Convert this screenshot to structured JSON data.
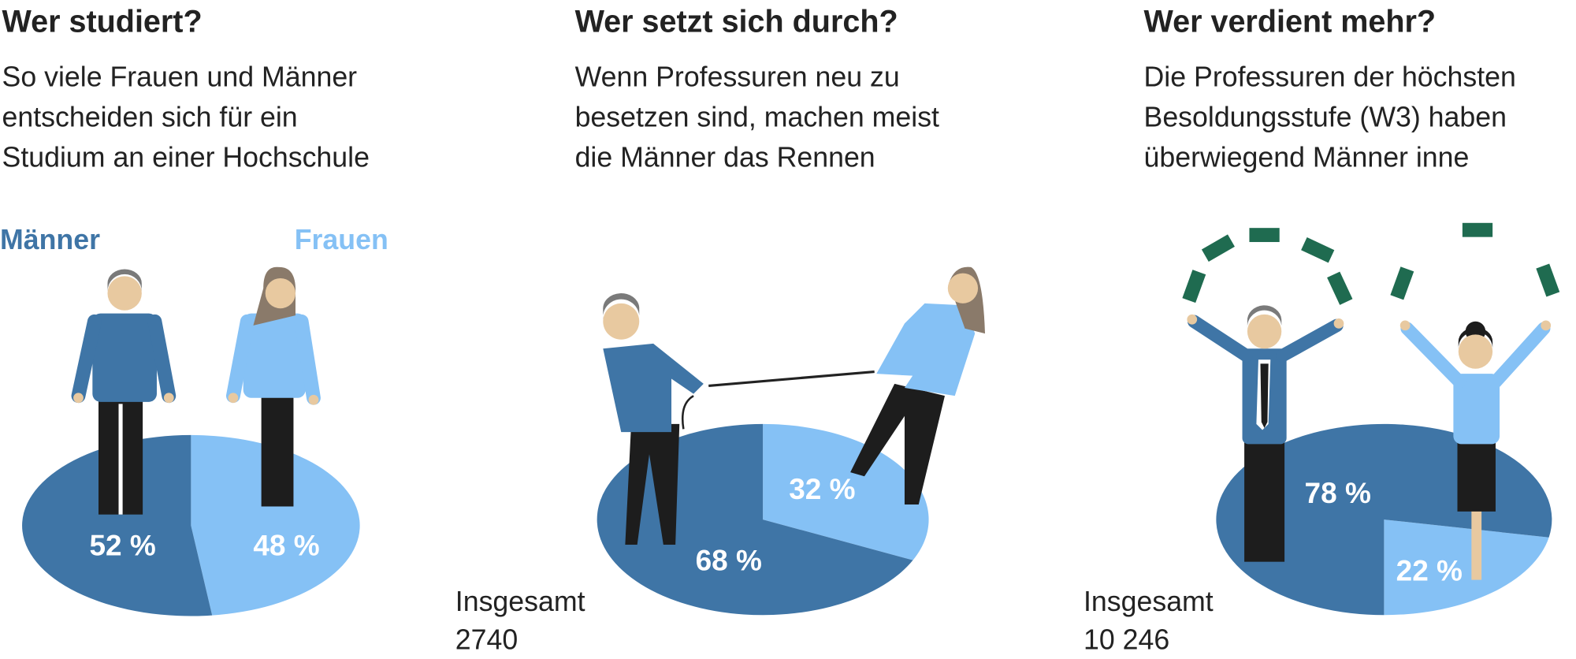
{
  "chart_data": [
    {
      "type": "pie",
      "title": "Wer studiert?",
      "subtitle": [
        "So viele Frauen und Männer",
        "entscheiden sich für ein",
        "Studium an einer Hochschule"
      ],
      "categories": [
        "Männer",
        "Frauen"
      ],
      "values": [
        52,
        48
      ],
      "value_labels": [
        "52 %",
        "48 %"
      ],
      "colors": [
        "#3f75a6",
        "#85c1f5"
      ]
    },
    {
      "type": "pie",
      "title": "Wer setzt sich durch?",
      "subtitle": [
        "Wenn Professuren neu zu",
        "besetzen sind, machen meist",
        "die Männer das Rennen"
      ],
      "values": [
        68,
        32
      ],
      "value_labels": [
        "68 %",
        "32 %"
      ],
      "colors": [
        "#3f75a6",
        "#85c1f5"
      ],
      "total_label": "Insgesamt",
      "total": 2740
    },
    {
      "type": "pie",
      "title": "Wer verdient mehr?",
      "subtitle": [
        "Die Professuren der höchsten",
        "Besoldungsstufe (W3) haben",
        "überwiegend Männer inne"
      ],
      "values": [
        78,
        22
      ],
      "value_labels": [
        "78 %",
        "22 %"
      ],
      "colors": [
        "#3f75a6",
        "#85c1f5"
      ],
      "total_label": "Insgesamt",
      "total": {
        "value": 10246,
        "label": "10 246"
      }
    }
  ]
}
